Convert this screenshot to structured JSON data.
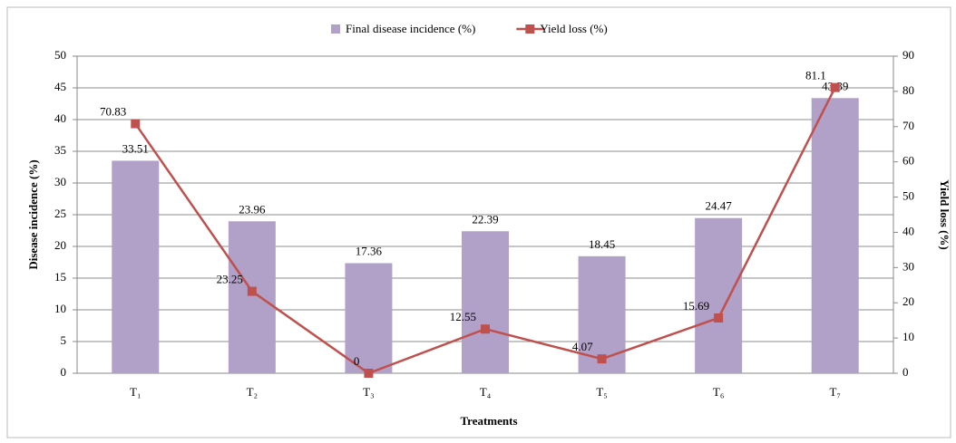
{
  "chart_data": {
    "type": "bar",
    "categories": [
      "T₁",
      "T₂",
      "T₃",
      "T₄",
      "T₅",
      "T₆",
      "T₇"
    ],
    "series": [
      {
        "name": "Final disease incidence (%)",
        "color": "#b1a0c7",
        "type": "bar",
        "values": [
          33.51,
          23.96,
          17.36,
          22.39,
          18.45,
          24.47,
          43.39
        ]
      },
      {
        "name": "Yield loss (%)",
        "color": "#c0504d",
        "type": "line",
        "axis": "y2",
        "values": [
          70.83,
          23.25,
          0,
          12.55,
          4.07,
          15.69,
          81.1
        ]
      }
    ],
    "ylabel": "Disease incidence (%)",
    "y2label": "Yield loss (%)",
    "xlabel": "Treatments",
    "ylim": [
      0,
      50
    ],
    "yticks": [
      0,
      5,
      10,
      15,
      20,
      25,
      30,
      35,
      40,
      45,
      50
    ],
    "y2lim": [
      0,
      90
    ],
    "y2ticks": [
      0,
      10,
      20,
      30,
      40,
      50,
      60,
      70,
      80,
      90
    ],
    "grid": true,
    "legend": "top"
  }
}
